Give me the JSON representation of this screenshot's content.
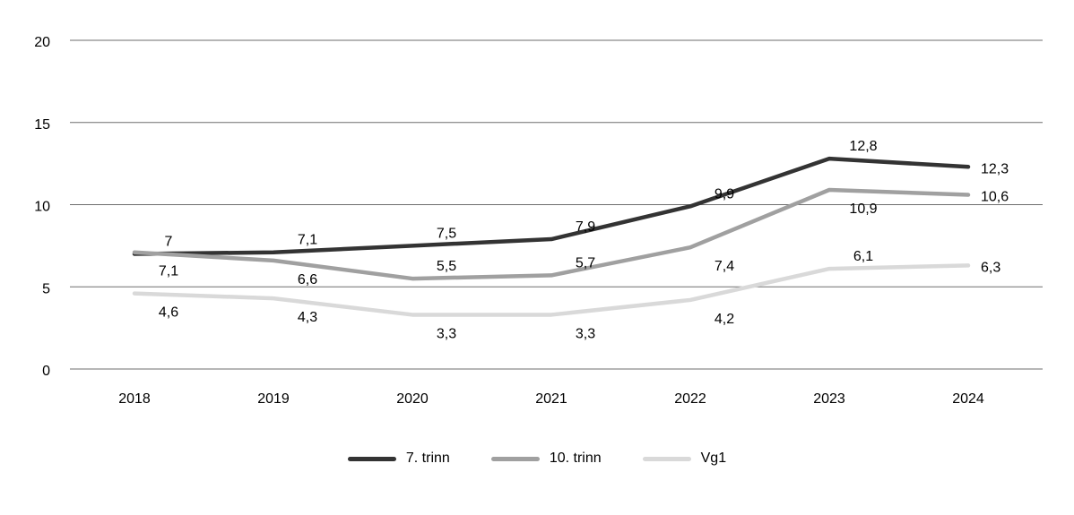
{
  "chart_data": {
    "type": "line",
    "title": "",
    "xlabel": "",
    "ylabel": "",
    "categories": [
      "2018",
      "2019",
      "2020",
      "2021",
      "2022",
      "2023",
      "2024"
    ],
    "series": [
      {
        "name": "7. trinn",
        "color": "#333333",
        "values": [
          7,
          7.1,
          7.5,
          7.9,
          9.9,
          12.8,
          12.3
        ],
        "point_labels": [
          "7",
          "7,1",
          "7,5",
          "7,9",
          "9,9",
          "12,8",
          "12,3"
        ],
        "label_positions": [
          "above",
          "above",
          "above",
          "above",
          "above",
          "above",
          "right"
        ]
      },
      {
        "name": "10. trinn",
        "color": "#a0a0a0",
        "values": [
          7.1,
          6.6,
          5.5,
          5.7,
          7.4,
          10.9,
          10.6
        ],
        "point_labels": [
          "7,1",
          "6,6",
          "5,5",
          "5,7",
          "7,4",
          "10,9",
          "10,6"
        ],
        "label_positions": [
          "below",
          "below",
          "above",
          "above",
          "below",
          "below",
          "right"
        ]
      },
      {
        "name": "Vg1",
        "color": "#d9d9d9",
        "values": [
          4.6,
          4.3,
          3.3,
          3.3,
          4.2,
          6.1,
          6.3
        ],
        "point_labels": [
          "4,6",
          "4,3",
          "3,3",
          "3,3",
          "4,2",
          "6,1",
          "6,3"
        ],
        "label_positions": [
          "below",
          "below",
          "below",
          "below",
          "below",
          "above",
          "right"
        ]
      }
    ],
    "ylim": [
      0,
      20
    ],
    "yticks": [
      0,
      5,
      10,
      15,
      20
    ],
    "ytick_labels": [
      "0",
      "5",
      "10",
      "15",
      "20"
    ],
    "grid": true,
    "legend_position": "bottom",
    "background_color": "#ffffff",
    "text_color": "#000000",
    "gridline_color": "#6e6e6e"
  }
}
